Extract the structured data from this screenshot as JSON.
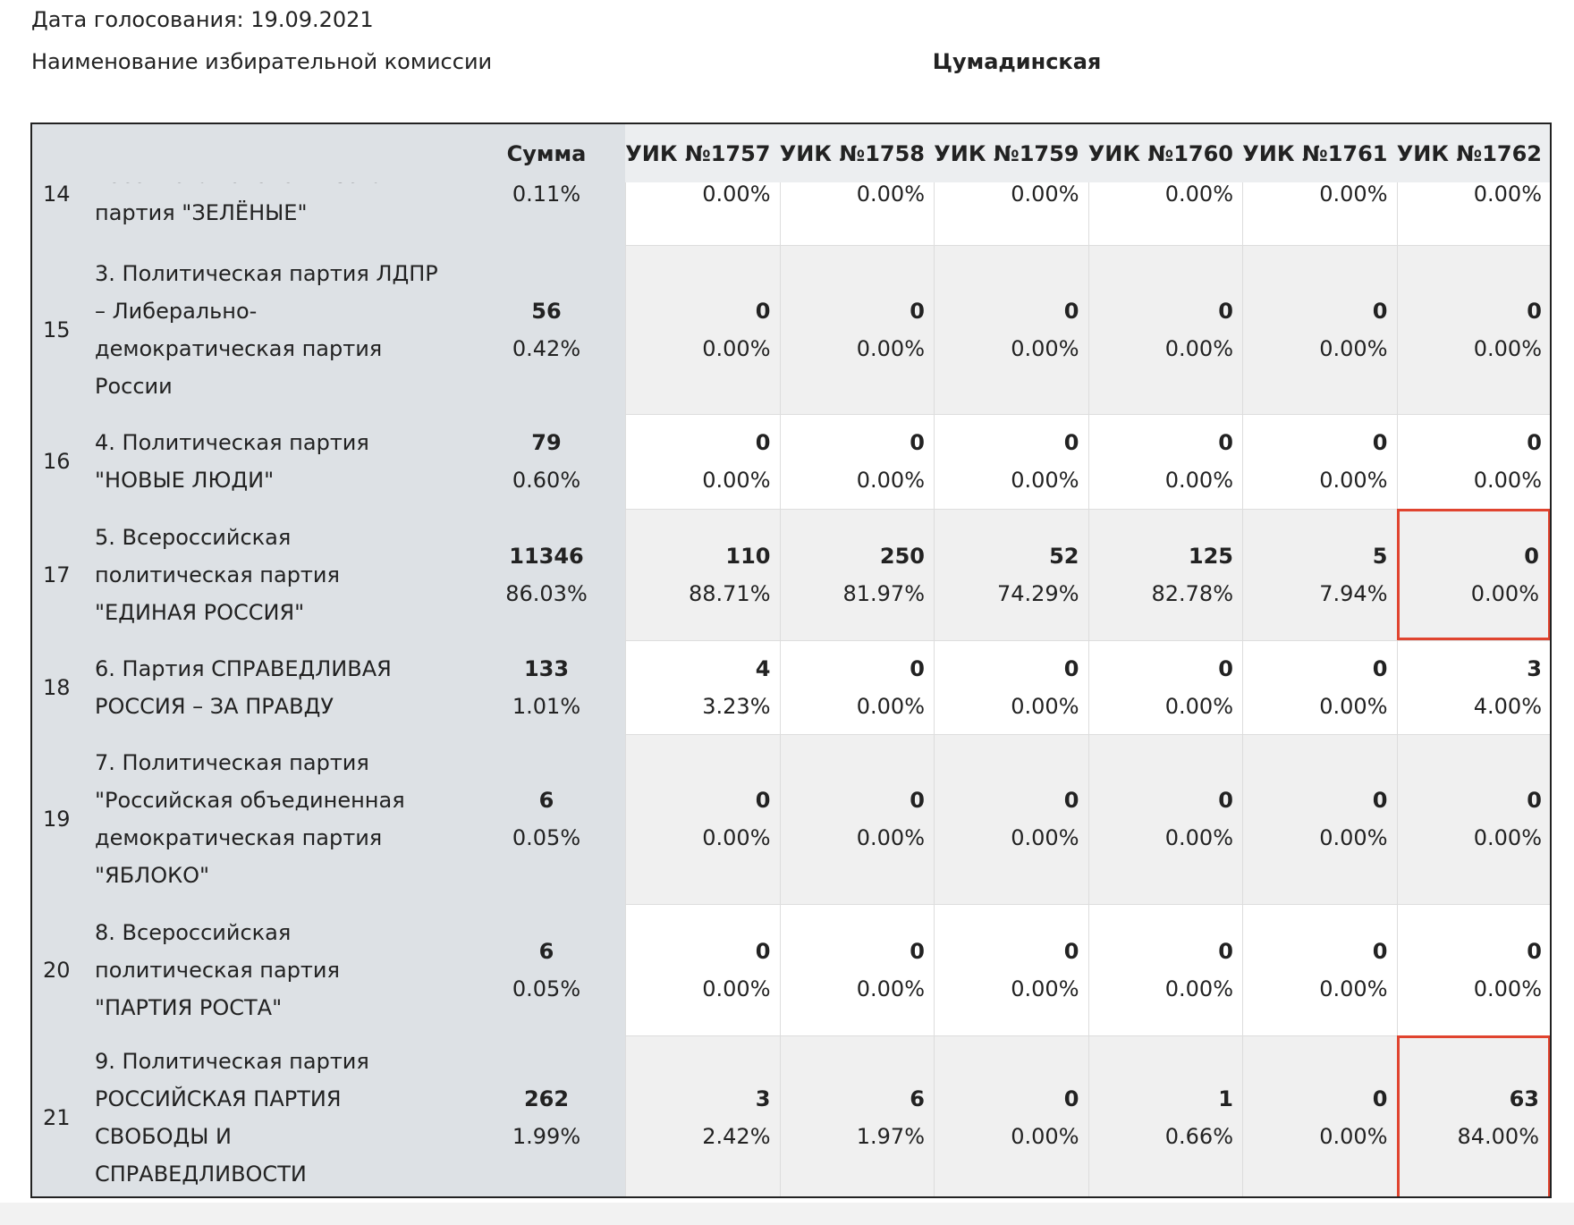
{
  "header": {
    "date_label": "Дата голосования:",
    "date": "19.09.2021",
    "commission_label": "Наименование избирательной комиссии",
    "commission": "Цумадинская"
  },
  "table": {
    "columns": [
      "Сумма",
      "УИК №1757",
      "УИК №1758",
      "УИК №1759",
      "УИК №1760",
      "УИК №1761",
      "УИК №1762"
    ],
    "rows": [
      {
        "num": "14",
        "name": "Российская экологическая партия \"ЗЕЛЁНЫЕ\"",
        "sum": {
          "pct": "0.11%"
        },
        "cells": [
          {
            "pct": "0.00%"
          },
          {
            "pct": "0.00%"
          },
          {
            "pct": "0.00%"
          },
          {
            "pct": "0.00%"
          },
          {
            "pct": "0.00%"
          },
          {
            "pct": "0.00%"
          }
        ]
      },
      {
        "num": "15",
        "name": "3. Политическая партия ЛДПР – Либерально-демократическая партия России",
        "sum": {
          "count": 56,
          "pct": "0.42%"
        },
        "cells": [
          {
            "count": 0,
            "pct": "0.00%"
          },
          {
            "count": 0,
            "pct": "0.00%"
          },
          {
            "count": 0,
            "pct": "0.00%"
          },
          {
            "count": 0,
            "pct": "0.00%"
          },
          {
            "count": 0,
            "pct": "0.00%"
          },
          {
            "count": 0,
            "pct": "0.00%"
          }
        ]
      },
      {
        "num": "16",
        "name": "4. Политическая партия \"НОВЫЕ ЛЮДИ\"",
        "sum": {
          "count": 79,
          "pct": "0.60%"
        },
        "cells": [
          {
            "count": 0,
            "pct": "0.00%"
          },
          {
            "count": 0,
            "pct": "0.00%"
          },
          {
            "count": 0,
            "pct": "0.00%"
          },
          {
            "count": 0,
            "pct": "0.00%"
          },
          {
            "count": 0,
            "pct": "0.00%"
          },
          {
            "count": 0,
            "pct": "0.00%"
          }
        ]
      },
      {
        "num": "17",
        "name": "5. Всероссийская политическая партия \"ЕДИНАЯ РОССИЯ\"",
        "sum": {
          "count": 11346,
          "pct": "86.03%"
        },
        "cells": [
          {
            "count": 110,
            "pct": "88.71%"
          },
          {
            "count": 250,
            "pct": "81.97%"
          },
          {
            "count": 52,
            "pct": "74.29%"
          },
          {
            "count": 125,
            "pct": "82.78%"
          },
          {
            "count": 5,
            "pct": "7.94%"
          },
          {
            "count": 0,
            "pct": "0.00%"
          }
        ]
      },
      {
        "num": "18",
        "name": "6. Партия СПРАВЕДЛИВАЯ РОССИЯ – ЗА ПРАВДУ",
        "sum": {
          "count": 133,
          "pct": "1.01%"
        },
        "cells": [
          {
            "count": 4,
            "pct": "3.23%"
          },
          {
            "count": 0,
            "pct": "0.00%"
          },
          {
            "count": 0,
            "pct": "0.00%"
          },
          {
            "count": 0,
            "pct": "0.00%"
          },
          {
            "count": 0,
            "pct": "0.00%"
          },
          {
            "count": 3,
            "pct": "4.00%"
          }
        ]
      },
      {
        "num": "19",
        "name": "7. Политическая партия \"Российская объединенная демократическая партия \"ЯБЛОКО\"",
        "sum": {
          "count": 6,
          "pct": "0.05%"
        },
        "cells": [
          {
            "count": 0,
            "pct": "0.00%"
          },
          {
            "count": 0,
            "pct": "0.00%"
          },
          {
            "count": 0,
            "pct": "0.00%"
          },
          {
            "count": 0,
            "pct": "0.00%"
          },
          {
            "count": 0,
            "pct": "0.00%"
          },
          {
            "count": 0,
            "pct": "0.00%"
          }
        ]
      },
      {
        "num": "20",
        "name": "8. Всероссийская политическая партия \"ПАРТИЯ РОСТА\"",
        "sum": {
          "count": 6,
          "pct": "0.05%"
        },
        "cells": [
          {
            "count": 0,
            "pct": "0.00%"
          },
          {
            "count": 0,
            "pct": "0.00%"
          },
          {
            "count": 0,
            "pct": "0.00%"
          },
          {
            "count": 0,
            "pct": "0.00%"
          },
          {
            "count": 0,
            "pct": "0.00%"
          },
          {
            "count": 0,
            "pct": "0.00%"
          }
        ]
      },
      {
        "num": "21",
        "name": "9. Политическая партия РОССИЙСКАЯ ПАРТИЯ СВОБОДЫ И СПРАВЕДЛИВОСТИ",
        "sum": {
          "count": 262,
          "pct": "1.99%"
        },
        "cells": [
          {
            "count": 3,
            "pct": "2.42%"
          },
          {
            "count": 6,
            "pct": "1.97%"
          },
          {
            "count": 0,
            "pct": "0.00%"
          },
          {
            "count": 1,
            "pct": "0.66%"
          },
          {
            "count": 0,
            "pct": "0.00%"
          },
          {
            "count": 63,
            "pct": "84.00%"
          }
        ]
      }
    ]
  }
}
